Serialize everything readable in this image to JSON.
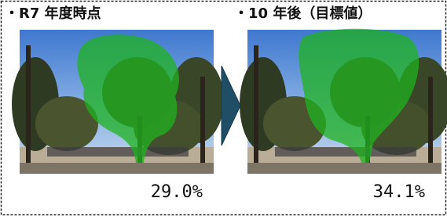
{
  "panels": [
    {
      "title": "・R7 年度時点",
      "value": "29.0%"
    },
    {
      "title": "・10 年後（目標値）",
      "value": "34.1%"
    }
  ]
}
